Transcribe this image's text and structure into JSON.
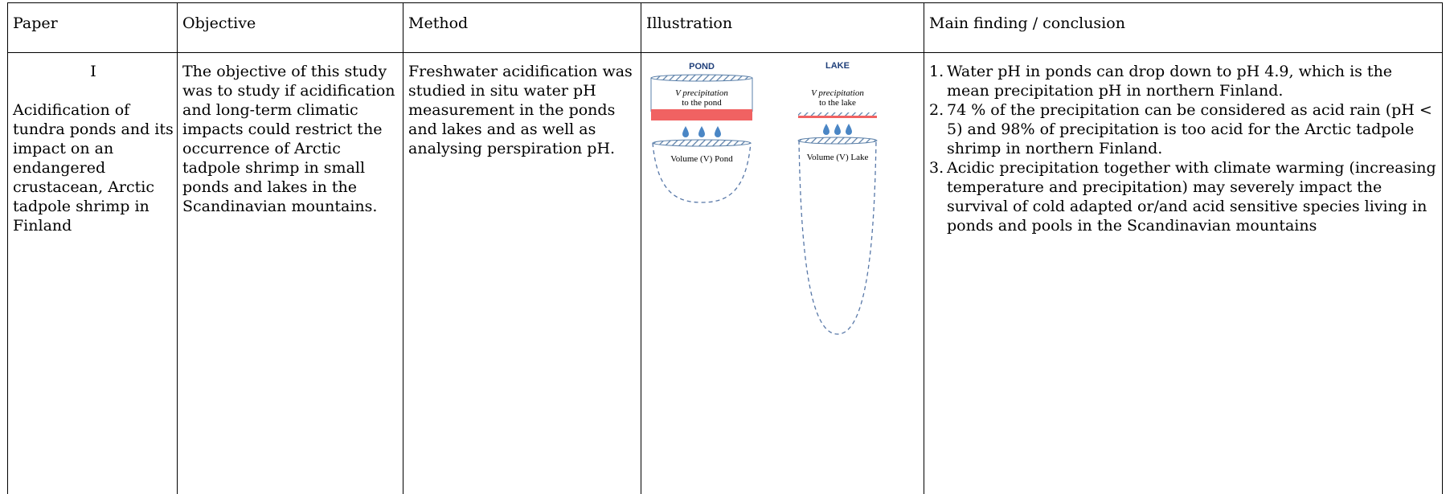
{
  "table": {
    "headers": {
      "paper": "Paper",
      "objective": "Objective",
      "method": "Method",
      "illustration": "Illustration",
      "finding": "Main finding / conclusion"
    },
    "row": {
      "paper_number": "I",
      "paper_title": "Acidification of tundra ponds and its impact on an endangered crustacean, Arctic tadpole shrimp in Finland",
      "objective": "The objective of this study was to study if acidification and long-term climatic impacts could restrict the occurrence of Arctic tadpole shrimp in small ponds and lakes in the Scandinavian mountains.",
      "method": "Freshwater acidification was studied in situ water pH measurement in the ponds and lakes and as well as analysing perspiration pH.",
      "findings": [
        {
          "num": "1.",
          "text": "Water pH in ponds can drop down to pH 4.9, which is the mean precipitation pH in northern Finland."
        },
        {
          "num": "2.",
          "text": "74 % of the precipitation can be considered as acid rain (pH < 5) and 98% of precipitation is too acid for the Arctic tadpole shrimp in northern Finland."
        },
        {
          "num": "3.",
          "text": "Acidic precipitation together with climate warming (increasing temperature and precipitation) may severely impact the survival of cold adapted or/and acid sensitive species living in ponds and pools in the Scandinavian mountains"
        }
      ]
    }
  },
  "illustration": {
    "pond": {
      "title": "POND",
      "precip_line1": "V precipitation",
      "precip_line2": "to the pond",
      "volume_label": "Volume (V) Pond"
    },
    "lake": {
      "title": "LAKE",
      "precip_line1": "V precipitation",
      "precip_line2": "to the lake",
      "volume_label": "Volume (V) Lake"
    },
    "colors": {
      "title_blue": "#1f3f7a",
      "red_band": "#f06262",
      "droplet": "#4a86c5",
      "hatch": "#5a7fa8",
      "dash": "#5878a8"
    }
  }
}
